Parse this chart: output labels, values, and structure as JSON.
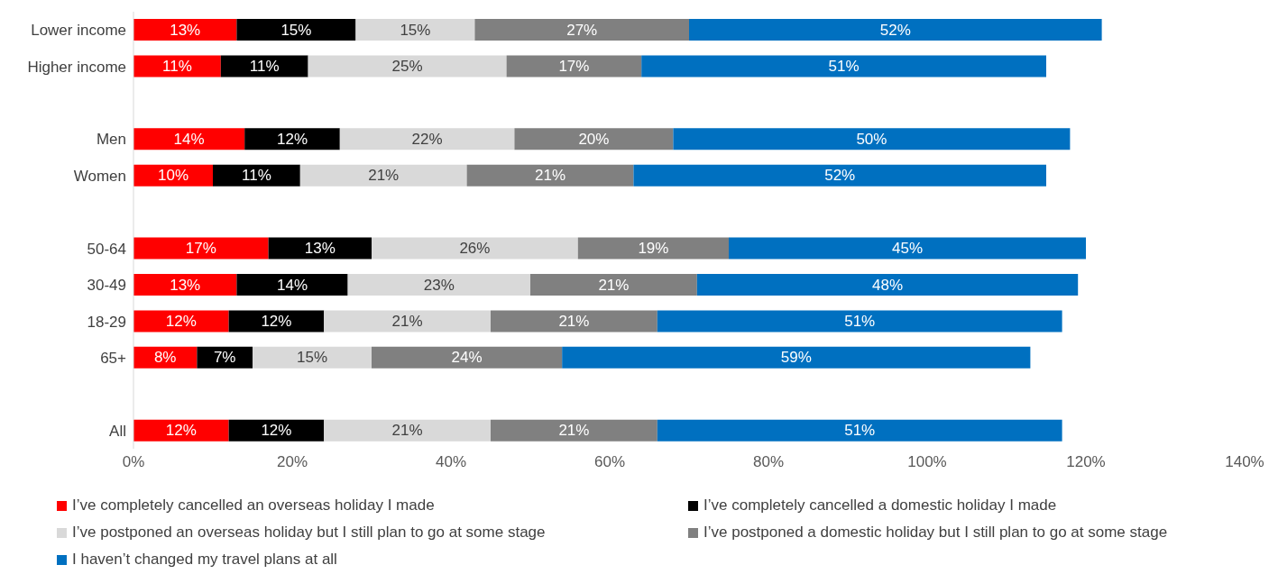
{
  "chart_data": {
    "type": "bar",
    "orientation": "horizontal",
    "stacked": true,
    "categories": [
      "Lower income",
      "Higher income",
      null,
      "Men",
      "Women",
      null,
      "50-64",
      "30-49",
      "18-29",
      "65+",
      null,
      "All"
    ],
    "series": [
      {
        "name": "I’ve completely cancelled an overseas holiday I made",
        "color": "#ff0000",
        "values": [
          13,
          11,
          null,
          14,
          10,
          null,
          17,
          13,
          12,
          8,
          null,
          12
        ],
        "value_labels": [
          "13%",
          "11%",
          null,
          "14%",
          "10%",
          null,
          "17%",
          "13%",
          "12%",
          "8%",
          null,
          "12%"
        ]
      },
      {
        "name": "I’ve completely cancelled a domestic holiday I made",
        "color": "#000000",
        "values": [
          15,
          11,
          null,
          12,
          11,
          null,
          13,
          14,
          12,
          7,
          null,
          12
        ],
        "value_labels": [
          "15%",
          "11%",
          null,
          "12%",
          "11%",
          null,
          "13%",
          "14%",
          "12%",
          "7%",
          null,
          "12%"
        ]
      },
      {
        "name": "I’ve postponed an overseas holiday but I still plan to go at some stage",
        "color": "#d9d9d9",
        "values": [
          15,
          25,
          null,
          22,
          21,
          null,
          26,
          23,
          21,
          15,
          null,
          21
        ],
        "value_labels": [
          "15%",
          "25%",
          null,
          "22%",
          "21%",
          null,
          "26%",
          "23%",
          "21%",
          "15%",
          null,
          "21%"
        ]
      },
      {
        "name": "I’ve postponed a domestic holiday but I still plan to go at some stage",
        "color": "#808080",
        "values": [
          27,
          17,
          null,
          20,
          21,
          null,
          19,
          21,
          21,
          24,
          null,
          21
        ],
        "value_labels": [
          "27%",
          "17%",
          null,
          "20%",
          "21%",
          null,
          "19%",
          "21%",
          "21%",
          "24%",
          null,
          "21%"
        ]
      },
      {
        "name": "I haven’t changed my travel plans at all",
        "color": "#0070c0",
        "values": [
          52,
          51,
          null,
          50,
          52,
          null,
          45,
          48,
          51,
          59,
          null,
          51
        ],
        "value_labels": [
          "52%",
          "51%",
          null,
          "50%",
          "52%",
          null,
          "45%",
          "48%",
          "51%",
          "59%",
          null,
          "51%"
        ]
      }
    ],
    "xlim": [
      0,
      140
    ],
    "xticks": [
      {
        "value": 0,
        "label": "0%"
      },
      {
        "value": 20,
        "label": "20%"
      },
      {
        "value": 40,
        "label": "40%"
      },
      {
        "value": 60,
        "label": "60%"
      },
      {
        "value": 80,
        "label": "80%"
      },
      {
        "value": 100,
        "label": "100%"
      },
      {
        "value": 120,
        "label": "120%"
      },
      {
        "value": 140,
        "label": "140%"
      }
    ],
    "grid": false,
    "legend": "bottom"
  }
}
